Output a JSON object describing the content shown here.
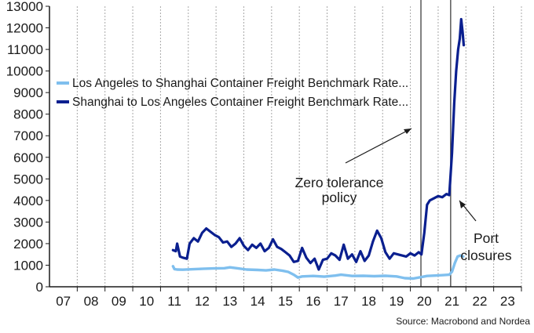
{
  "chart_data": {
    "type": "line",
    "title": "",
    "xlabel": "",
    "ylabel": "",
    "ylim": [
      0,
      13000
    ],
    "xlim": [
      2006.5,
      2023.5
    ],
    "y_ticks": [
      0,
      1000,
      2000,
      3000,
      4000,
      5000,
      6000,
      7000,
      8000,
      9000,
      10000,
      11000,
      12000,
      13000
    ],
    "x_ticks": [
      {
        "value": 2007,
        "label": "07"
      },
      {
        "value": 2008,
        "label": "08"
      },
      {
        "value": 2009,
        "label": "09"
      },
      {
        "value": 2010,
        "label": "10"
      },
      {
        "value": 2011,
        "label": "11"
      },
      {
        "value": 2012,
        "label": "12"
      },
      {
        "value": 2013,
        "label": "13"
      },
      {
        "value": 2014,
        "label": "14"
      },
      {
        "value": 2015,
        "label": "15"
      },
      {
        "value": 2016,
        "label": "16"
      },
      {
        "value": 2017,
        "label": "17"
      },
      {
        "value": 2018,
        "label": "18"
      },
      {
        "value": 2019,
        "label": "19"
      },
      {
        "value": 2020,
        "label": "20"
      },
      {
        "value": 2021,
        "label": "21"
      },
      {
        "value": 2022,
        "label": "22"
      },
      {
        "value": 2023,
        "label": "23"
      }
    ],
    "grid": "vertical",
    "legend_position": "upper-left",
    "series": [
      {
        "name": "Los Angeles to Shanghai Container Freight Benchmark Rate...",
        "color": "#7fbfee",
        "x": [
          2010.95,
          2011.0,
          2011.1,
          2011.3,
          2011.6,
          2012.0,
          2012.4,
          2012.8,
          2013.0,
          2013.3,
          2013.6,
          2014.0,
          2014.3,
          2014.6,
          2014.9,
          2015.1,
          2015.3,
          2015.45,
          2015.6,
          2016.0,
          2016.4,
          2016.8,
          2017.0,
          2017.4,
          2017.8,
          2018.2,
          2018.6,
          2019.0,
          2019.3,
          2019.6,
          2019.9,
          2020.1,
          2020.4,
          2020.7,
          2020.9,
          2021.0,
          2021.1,
          2021.2,
          2021.3,
          2021.4
        ],
        "y": [
          950,
          820,
          800,
          790,
          810,
          830,
          850,
          860,
          900,
          850,
          800,
          780,
          760,
          800,
          740,
          690,
          560,
          430,
          480,
          500,
          470,
          520,
          560,
          500,
          510,
          490,
          510,
          480,
          400,
          380,
          450,
          500,
          520,
          540,
          560,
          700,
          1100,
          1400,
          1450,
          1400
        ]
      },
      {
        "name": "Shanghai to Los Angeles Container Freight Benchmark Rate...",
        "color": "#0a1f8f",
        "x": [
          2010.95,
          2011.05,
          2011.1,
          2011.2,
          2011.3,
          2011.45,
          2011.55,
          2011.7,
          2011.85,
          2012.0,
          2012.15,
          2012.3,
          2012.45,
          2012.6,
          2012.75,
          2012.9,
          2013.05,
          2013.2,
          2013.35,
          2013.5,
          2013.65,
          2013.8,
          2013.95,
          2014.1,
          2014.25,
          2014.4,
          2014.55,
          2014.7,
          2014.85,
          2015.0,
          2015.15,
          2015.3,
          2015.45,
          2015.6,
          2015.75,
          2015.9,
          2016.05,
          2016.2,
          2016.35,
          2016.5,
          2016.65,
          2016.8,
          2016.95,
          2017.1,
          2017.25,
          2017.4,
          2017.55,
          2017.7,
          2017.85,
          2018.0,
          2018.15,
          2018.3,
          2018.45,
          2018.6,
          2018.75,
          2018.9,
          2019.05,
          2019.2,
          2019.35,
          2019.5,
          2019.65,
          2019.8,
          2019.9,
          2020.0,
          2020.1,
          2020.2,
          2020.35,
          2020.5,
          2020.65,
          2020.8,
          2020.9,
          2021.0,
          2021.08,
          2021.15,
          2021.22,
          2021.28,
          2021.33,
          2021.38,
          2021.42
        ],
        "y": [
          1700,
          1650,
          2000,
          1400,
          1350,
          1300,
          2000,
          2250,
          2100,
          2500,
          2700,
          2550,
          2400,
          2300,
          2050,
          2100,
          1850,
          2000,
          2250,
          1900,
          1700,
          1950,
          1800,
          2000,
          1650,
          1800,
          2200,
          1850,
          1750,
          1600,
          1450,
          1150,
          1200,
          1800,
          1350,
          1100,
          1300,
          800,
          1250,
          1300,
          1550,
          1450,
          1250,
          1950,
          1300,
          1500,
          1150,
          1650,
          1200,
          1450,
          2100,
          2600,
          2250,
          1600,
          1300,
          1550,
          1500,
          1450,
          1400,
          1550,
          1450,
          1600,
          1500,
          2500,
          3800,
          4000,
          4100,
          4200,
          4150,
          4300,
          4250,
          6200,
          8500,
          10000,
          11000,
          11500,
          12400,
          11800,
          11200
        ]
      }
    ],
    "vlines": [
      2019.88,
      2020.95
    ],
    "annotations": [
      {
        "text": "Zero tolerance",
        "x": 2019.0,
        "y": 5000,
        "arrow_to": [
          2019.88,
          7500
        ]
      },
      {
        "text": "policy",
        "x": 2019.0,
        "y": 4000
      },
      {
        "text": "Port",
        "x": 2022.2,
        "y": 2200,
        "arrow_to": [
          2021.4,
          4200
        ]
      },
      {
        "text": "closures",
        "x": 2022.2,
        "y": 1400
      }
    ],
    "source": "Source: Macrobond and Nordea"
  }
}
